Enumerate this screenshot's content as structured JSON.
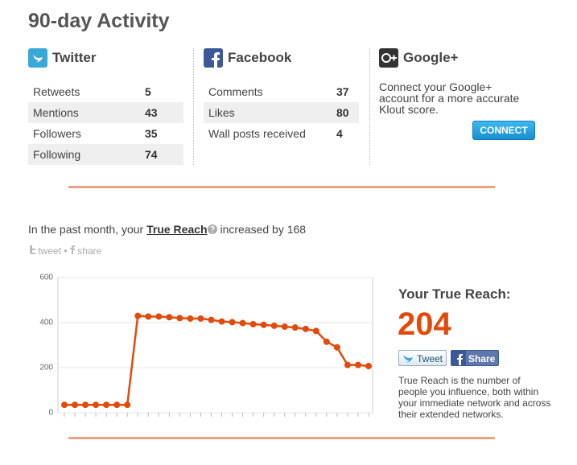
{
  "header": {
    "title": "90-day Activity"
  },
  "twitter": {
    "title": "Twitter",
    "rows": [
      [
        "Retweets",
        5
      ],
      [
        "Mentions",
        43
      ],
      [
        "Followers",
        35
      ],
      [
        "Following",
        74
      ]
    ]
  },
  "facebook": {
    "title": "Facebook",
    "rows": [
      [
        "Comments",
        37
      ],
      [
        "Likes",
        80
      ],
      [
        "Wall posts received",
        4
      ]
    ]
  },
  "google": {
    "title": "Google+",
    "text": "Connect your Google+ account for a more accurate Klout score.",
    "button": "CONNECT"
  },
  "reach": {
    "before": "In the past month, your",
    "link": "True Reach",
    "after": "increased by 168",
    "tweet": "tweet",
    "separator": "•",
    "share": "share"
  },
  "chart_data": {
    "type": "line",
    "categories": [
      null,
      null,
      null,
      null,
      null,
      null,
      null,
      null,
      null,
      null,
      null,
      null,
      null,
      null,
      null,
      null,
      null,
      null,
      null,
      null,
      null,
      null,
      null,
      null,
      null,
      null,
      null,
      null,
      null,
      null
    ],
    "series": [
      {
        "color": "#e24a0c",
        "values": [
          35,
          35,
          35,
          35,
          35,
          35,
          35,
          430,
          427,
          427,
          424,
          420,
          418,
          418,
          412,
          405,
          402,
          398,
          393,
          390,
          386,
          382,
          378,
          372,
          363,
          315,
          290,
          212,
          212,
          207
        ]
      }
    ],
    "ylim": [
      0,
      600
    ],
    "yticks": [
      0,
      200,
      400,
      600
    ],
    "grid": true
  },
  "summary": {
    "title": "Your True Reach:",
    "value": 204,
    "tweet": "Tweet",
    "share": "Share",
    "text": "True Reach is the number of people you influence, both within your immediate network and across their extended networks."
  }
}
